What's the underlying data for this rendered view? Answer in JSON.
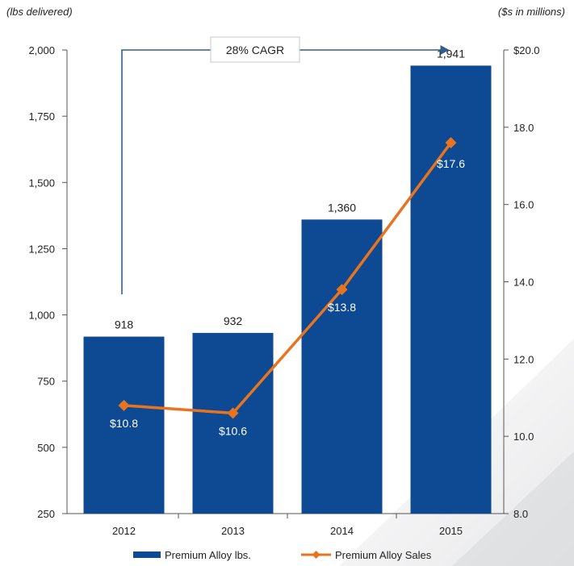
{
  "chart_data": {
    "type": "bar",
    "categories": [
      "2012",
      "2013",
      "2014",
      "2015"
    ],
    "y_left": {
      "unit_label": "(lbs delivered)",
      "ylim": [
        250,
        2000
      ],
      "ticks": [
        250,
        500,
        750,
        1000,
        1250,
        1500,
        1750,
        2000
      ],
      "tick_labels": [
        "250",
        "500",
        "750",
        "1,000",
        "1,250",
        "1,500",
        "1,750",
        "2,000"
      ]
    },
    "y_right": {
      "unit_label": "($s in millions)",
      "ylim": [
        8.0,
        20.0
      ],
      "ticks": [
        8.0,
        10.0,
        12.0,
        14.0,
        16.0,
        18.0,
        20.0
      ],
      "tick_labels": [
        "8.0",
        "10.0",
        "12.0",
        "14.0",
        "16.0",
        "18.0",
        "$20.0"
      ]
    },
    "series": [
      {
        "name": "Premium Alloy lbs.",
        "type": "bar",
        "axis": "left",
        "color": "#0d4a93",
        "values": [
          918,
          932,
          1360,
          1941
        ],
        "labels": [
          "918",
          "932",
          "1,360",
          "1,941"
        ]
      },
      {
        "name": "Premium Alloy Sales",
        "type": "line",
        "axis": "right",
        "color": "#e8741f",
        "values": [
          10.8,
          10.6,
          13.8,
          17.6
        ],
        "labels": [
          "$10.8",
          "$10.6",
          "$13.8",
          "$17.6"
        ]
      }
    ],
    "annotation": {
      "text": "28% CAGR",
      "from": "2012",
      "to": "2015",
      "color": "#2f5f8f"
    },
    "legend": {
      "placement": "bottom"
    },
    "grid": false
  }
}
